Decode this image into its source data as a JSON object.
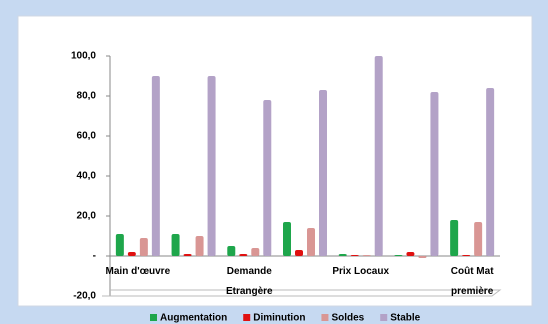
{
  "chart_data": {
    "type": "bar",
    "categories": [
      "Main d'œuvre",
      null,
      "Demande Etrangère",
      null,
      "Prix Locaux",
      null,
      "Coût Mat première"
    ],
    "series": [
      {
        "name": "Augmentation",
        "color": "#1ea64b",
        "values": [
          11,
          11,
          5,
          17,
          1,
          0.5,
          18
        ]
      },
      {
        "name": "Diminution",
        "color": "#e01010",
        "values": [
          2,
          1,
          1,
          3,
          0.5,
          2,
          0.5
        ]
      },
      {
        "name": "Soldes",
        "color": "#d99694",
        "values": [
          9,
          10,
          4,
          14,
          0.5,
          -1,
          17
        ]
      },
      {
        "name": "Stable",
        "color": "#b3a2c7",
        "values": [
          90,
          90,
          78,
          83,
          100,
          82,
          84
        ]
      }
    ],
    "ylim": [
      -20,
      100
    ],
    "yticks": [
      {
        "value": -20,
        "label": "-20,0"
      },
      {
        "value": 0,
        "label": "-"
      },
      {
        "value": 20,
        "label": "20,0"
      },
      {
        "value": 40,
        "label": "40,0"
      },
      {
        "value": 60,
        "label": "60,0"
      },
      {
        "value": 80,
        "label": "80,0"
      },
      {
        "value": 100,
        "label": "100,0"
      }
    ]
  }
}
